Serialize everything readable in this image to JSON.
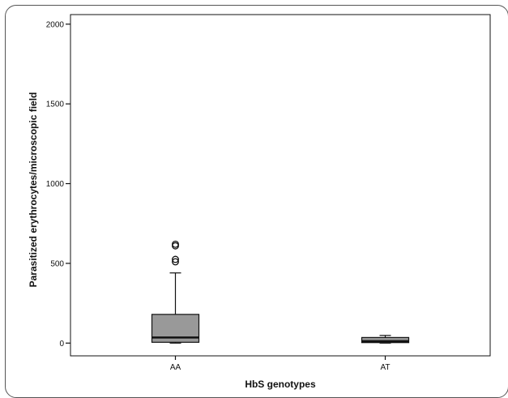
{
  "chart_data": {
    "type": "boxplot",
    "title": "",
    "xlabel": "HbS genotypes",
    "ylabel": "Parasitized erythrocytes/microscopic field",
    "ylim": [
      -80,
      2060
    ],
    "yticks": [
      0,
      500,
      1000,
      1500,
      2000
    ],
    "grid": false,
    "box_color": "#999999",
    "categories": [
      "AA",
      "AT"
    ],
    "boxes": [
      {
        "category": "AA",
        "whisker_low": 0,
        "q1": 5,
        "median": 35,
        "q3": 180,
        "whisker_high": 440,
        "outliers": [
          510,
          525,
          610,
          620
        ]
      },
      {
        "category": "AT",
        "whisker_low": 0,
        "q1": 3,
        "median": 12,
        "q3": 35,
        "whisker_high": 48,
        "outliers": []
      }
    ]
  }
}
